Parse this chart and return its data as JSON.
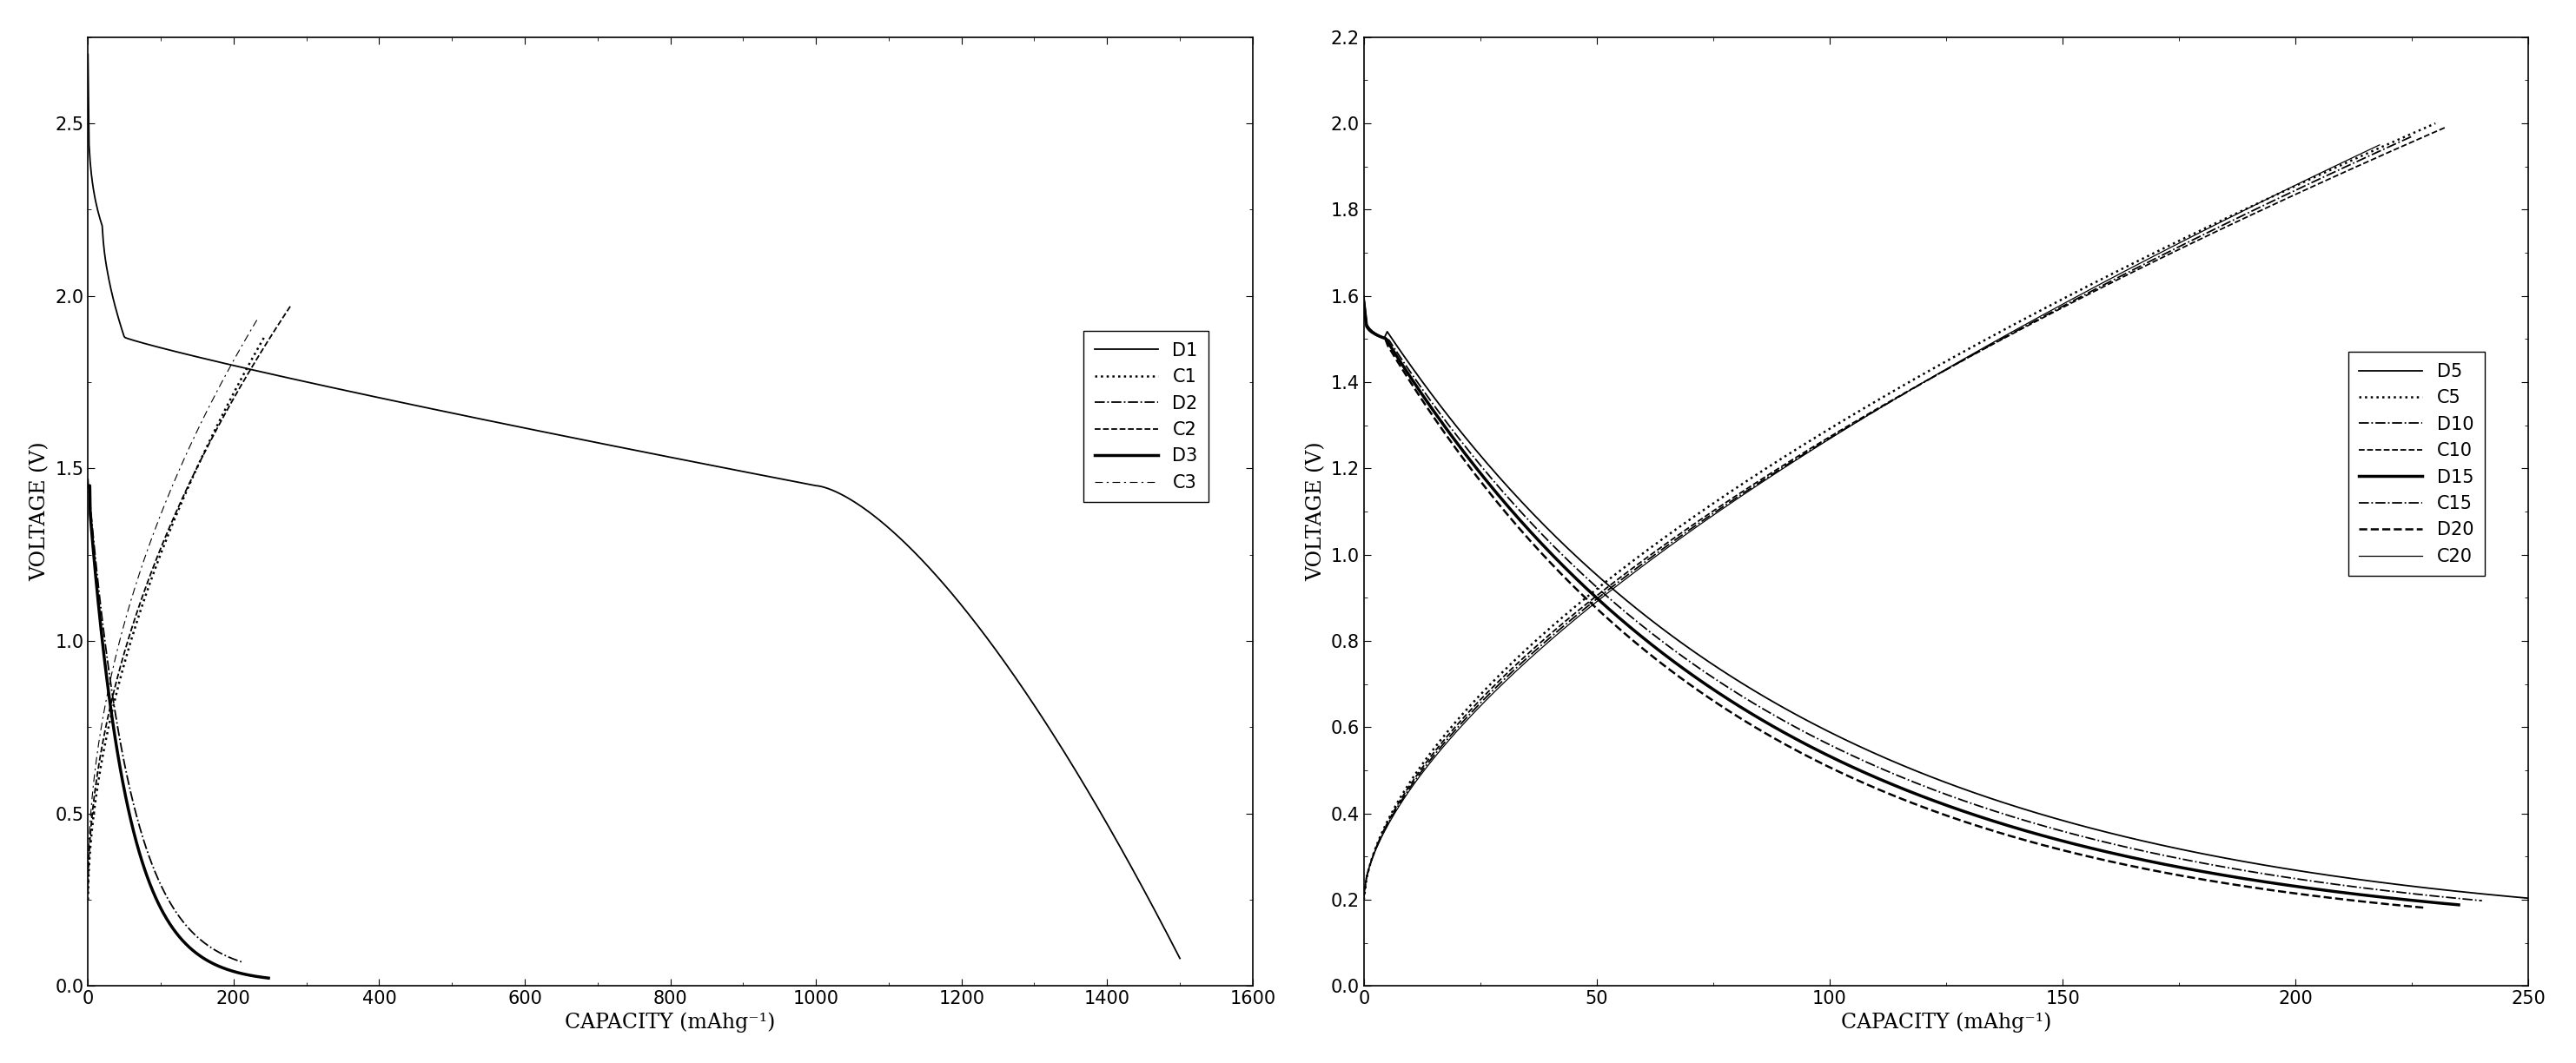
{
  "left": {
    "xlim": [
      0,
      1600
    ],
    "ylim": [
      0.0,
      2.75
    ],
    "xticks": [
      0,
      200,
      400,
      600,
      800,
      1000,
      1200,
      1400,
      1600
    ],
    "yticks": [
      0.0,
      0.5,
      1.0,
      1.5,
      2.0,
      2.5
    ],
    "xlabel": "CAPACITY (mAhg⁻¹)",
    "ylabel": "VOLTAGE (V)",
    "legend_labels": [
      "D1",
      "C1",
      "D2",
      "C2",
      "D3",
      "C3"
    ]
  },
  "right": {
    "xlim": [
      0,
      250
    ],
    "ylim": [
      0.0,
      2.2
    ],
    "xticks": [
      0,
      50,
      100,
      150,
      200,
      250
    ],
    "yticks": [
      0.0,
      0.2,
      0.4,
      0.6,
      0.8,
      1.0,
      1.2,
      1.4,
      1.6,
      1.8,
      2.0,
      2.2
    ],
    "xlabel": "CAPACITY (mAhg⁻¹)",
    "ylabel": "VOLTAGE (V)",
    "legend_labels": [
      "D5",
      "C5",
      "D10",
      "C10",
      "D15",
      "C15",
      "D20",
      "C20"
    ]
  }
}
